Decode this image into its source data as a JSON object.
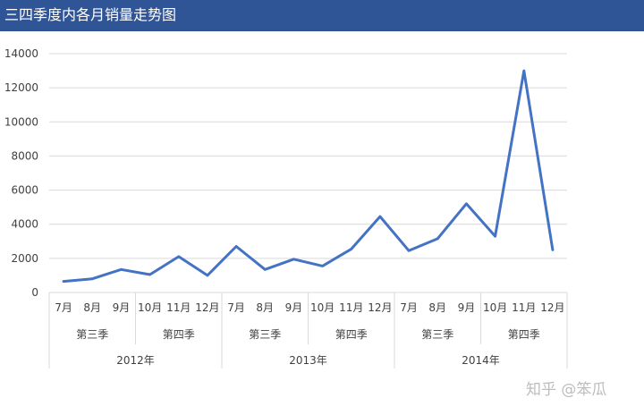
{
  "header": {
    "title": "三四季度内各月销量走势图"
  },
  "watermark": "知乎 @笨瓜",
  "colors": {
    "header_bg": "#2F5597",
    "line": "#4472C4",
    "grid": "#d9d9d9",
    "text": "#404040"
  },
  "chart_data": {
    "type": "line",
    "title": "三四季度内各月销量走势图",
    "xlabel": "",
    "ylabel": "",
    "ylim": [
      0,
      14000
    ],
    "yticks": [
      0,
      2000,
      4000,
      6000,
      8000,
      10000,
      12000,
      14000
    ],
    "grid": true,
    "legend": "none",
    "categories": [
      "7月",
      "8月",
      "9月",
      "10月",
      "11月",
      "12月",
      "7月",
      "8月",
      "9月",
      "10月",
      "11月",
      "12月",
      "7月",
      "8月",
      "9月",
      "10月",
      "11月",
      "12月"
    ],
    "quarter_groups": [
      {
        "label": "第三季",
        "span": 3
      },
      {
        "label": "第四季",
        "span": 3
      },
      {
        "label": "第三季",
        "span": 3
      },
      {
        "label": "第四季",
        "span": 3
      },
      {
        "label": "第三季",
        "span": 3
      },
      {
        "label": "第四季",
        "span": 3
      }
    ],
    "year_groups": [
      {
        "label": "2012年",
        "span": 6
      },
      {
        "label": "2013年",
        "span": 6
      },
      {
        "label": "2014年",
        "span": 6
      }
    ],
    "series": [
      {
        "values": [
          650,
          800,
          1350,
          1050,
          2100,
          1000,
          2700,
          1350,
          1950,
          1550,
          2550,
          4450,
          2450,
          3150,
          5200,
          3300,
          13000,
          2500
        ]
      }
    ]
  }
}
